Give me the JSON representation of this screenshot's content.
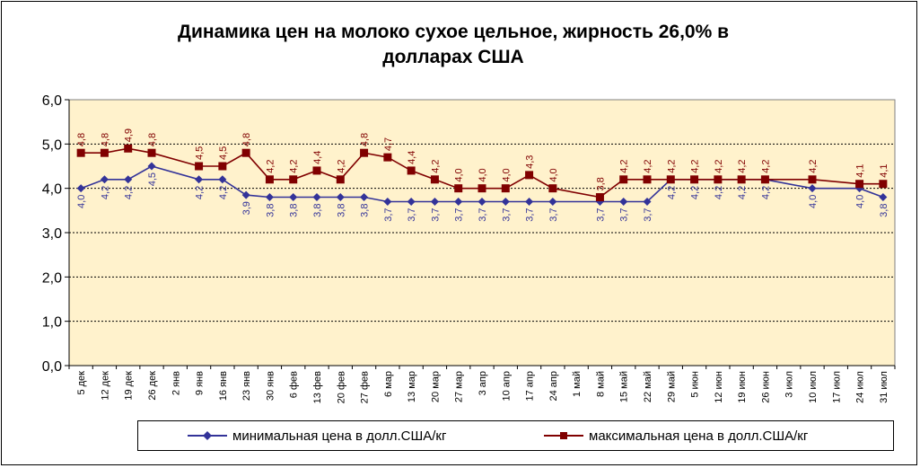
{
  "chart_data": {
    "type": "line",
    "title_line1": "Динамика цен на молоко сухое цельное, жирность 26,0%  в",
    "title_line2": "долларах США",
    "xlabel": "",
    "ylabel": "",
    "ylim": [
      0,
      6
    ],
    "yticks": [
      "0,0",
      "1,0",
      "2,0",
      "3,0",
      "4,0",
      "5,0",
      "6,0"
    ],
    "grid": true,
    "legend_position": "bottom",
    "categories": [
      "5 дек",
      "12 дек",
      "19 дек",
      "26 дек",
      "2 янв",
      "9 янв",
      "16 янв",
      "23 янв",
      "30 янв",
      "6 фев",
      "13 фев",
      "20 фев",
      "27 фев",
      "6 мар",
      "13 мар",
      "20 мар",
      "27 мар",
      "3 апр",
      "10 апр",
      "17 апр",
      "24 апр",
      "1 май",
      "8 май",
      "15 май",
      "22 май",
      "29 май",
      "5 июн",
      "12 июн",
      "19 июн",
      "26 июн",
      "3 июл",
      "10 июл",
      "17 июл",
      "24 июл",
      "31 июл"
    ],
    "series": [
      {
        "name": "минимальная цена в долл.США/кг",
        "color": "#333399",
        "marker": "diamond",
        "values": [
          4.0,
          4.2,
          4.2,
          4.5,
          null,
          4.2,
          4.2,
          3.85,
          3.8,
          3.8,
          3.8,
          3.8,
          3.8,
          3.7,
          3.7,
          3.7,
          3.7,
          3.7,
          3.7,
          3.7,
          3.7,
          null,
          3.7,
          3.7,
          3.7,
          4.2,
          4.2,
          4.2,
          4.2,
          4.2,
          null,
          4.0,
          null,
          4.0,
          3.8
        ],
        "labels": [
          "4,0",
          "4,2",
          "4,2",
          "4,5",
          "",
          "4,2",
          "4,2",
          "3,9",
          "3,8",
          "3,8",
          "3,8",
          "3,8",
          "3,8",
          "3,7",
          "3,7",
          "3,7",
          "3,7",
          "3,7",
          "3,7",
          "3,7",
          "3,7",
          "",
          "3,7",
          "3,7",
          "3,7",
          "4,2",
          "4,2",
          "4,2",
          "4,2",
          "4,2",
          "",
          "4,0",
          "",
          "4,0",
          "3,8"
        ]
      },
      {
        "name": "максимальная цена в долл.США/кг",
        "color": "#800000",
        "marker": "square",
        "values": [
          4.8,
          4.8,
          4.9,
          4.8,
          null,
          4.5,
          4.5,
          4.8,
          4.2,
          4.2,
          4.4,
          4.2,
          4.8,
          4.7,
          4.4,
          4.2,
          4.0,
          4.0,
          4.0,
          4.3,
          4.0,
          null,
          3.8,
          4.2,
          4.2,
          4.2,
          4.2,
          4.2,
          4.2,
          4.2,
          null,
          4.2,
          null,
          4.1,
          4.1
        ],
        "labels": [
          "4,8",
          "4,8",
          "4,9",
          "4,8",
          "",
          "4,5",
          "4,5",
          "4,8",
          "4,2",
          "4,2",
          "4,4",
          "4,2",
          "4,8",
          "4,7",
          "4,4",
          "4,2",
          "4,0",
          "4,0",
          "4,0",
          "4,3",
          "4,0",
          "",
          "3,8",
          "4,2",
          "4,2",
          "4,2",
          "4,2",
          "4,2",
          "4,2",
          "4,2",
          "",
          "4,2",
          "",
          "4,1",
          "4,1"
        ]
      }
    ],
    "plot_background": "#FFF2CC"
  }
}
